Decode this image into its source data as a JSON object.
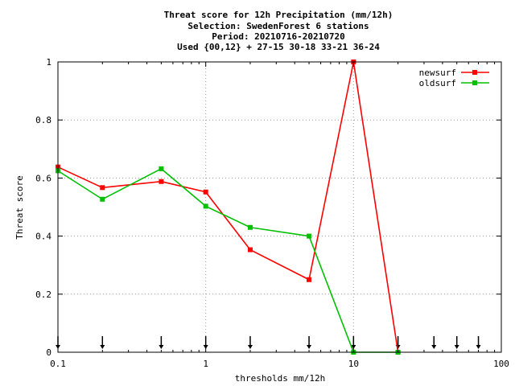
{
  "chart_data": {
    "type": "line",
    "title_lines": [
      "Threat score  for 12h Precipitation (mm/12h)",
      "Selection: SwedenForest      6 stations",
      "Period: 20210716-20210720",
      "Used {00,12} + 27-15 30-18 33-21 36-24"
    ],
    "xlabel": "thresholds mm/12h",
    "ylabel": "Threat score",
    "xscale": "log",
    "xlim": [
      0.1,
      100
    ],
    "ylim": [
      0,
      1
    ],
    "x_ticks": [
      0.1,
      1,
      10,
      100
    ],
    "x_tick_labels": [
      "0.1",
      "1",
      "10",
      "100"
    ],
    "y_ticks": [
      0,
      0.2,
      0.4,
      0.6,
      0.8,
      1
    ],
    "y_tick_labels": [
      "0",
      "0.2",
      "0.4",
      "0.6",
      "0.8",
      "1"
    ],
    "grid": true,
    "legend_position": "top-right",
    "threshold_markers": [
      0.1,
      0.2,
      0.5,
      1,
      2,
      5,
      10,
      20,
      35,
      50,
      70
    ],
    "x": [
      0.1,
      0.2,
      0.5,
      1,
      2,
      5,
      10,
      20
    ],
    "series": [
      {
        "name": "newsurf",
        "color": "#ff0000",
        "values": [
          0.638,
          0.567,
          0.588,
          0.552,
          0.353,
          0.25,
          1.0,
          0.0
        ]
      },
      {
        "name": "oldsurf",
        "color": "#00c000",
        "values": [
          0.625,
          0.527,
          0.632,
          0.503,
          0.43,
          0.4,
          0.0,
          0.0
        ]
      }
    ]
  }
}
